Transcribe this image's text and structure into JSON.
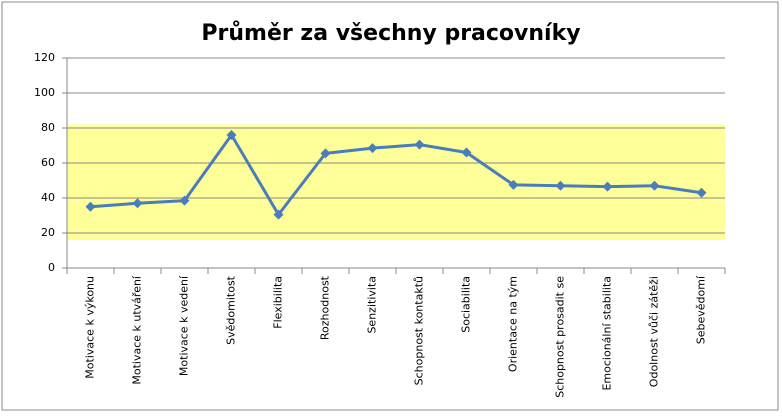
{
  "chart_data": {
    "type": "line",
    "title": "Průměr za všechny pracovníky",
    "categories": [
      "Motivace k výkonu",
      "Motivace k utváření",
      "Motivace k vedení",
      "Svědomitost",
      "Flexibilita",
      "Rozhodnost",
      "Senzitivita",
      "Schopnost kontaktů",
      "Sociabilita",
      "Orientace na tým",
      "Schopnost prosadit se",
      "Emocionální stabilita",
      "Odolnost vůči zátěži",
      "Sebevědomí"
    ],
    "values": [
      35,
      37,
      38.5,
      76,
      30.5,
      65.5,
      68.5,
      70.5,
      66,
      47.5,
      47,
      46.5,
      47,
      43
    ],
    "color": "#4a7ebb",
    "band": [
      16,
      82
    ],
    "band_color": "#ffff99",
    "ylim": [
      0,
      120
    ],
    "yticks": [
      0,
      20,
      40,
      60,
      80,
      100,
      120
    ],
    "grid": true
  }
}
